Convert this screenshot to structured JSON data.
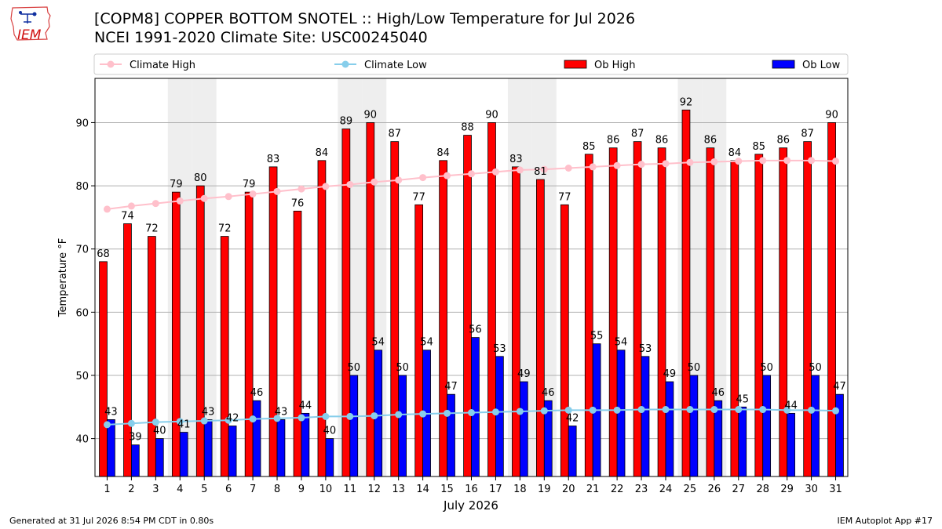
{
  "logo": {
    "text": "IEM",
    "icon": "iowa-state-outline-icon"
  },
  "header": {
    "title": "[COPM8] COPPER BOTTOM SNOTEL :: High/Low Temperature for Jul 2026",
    "subtitle": "NCEI 1991-2020 Climate Site: USC00245040"
  },
  "footer": {
    "left": "Generated at 31 Jul 2026 8:54 PM CDT in 0.80s",
    "right": "IEM Autoplot App #17"
  },
  "colors": {
    "climate_high": "#ffc0cb",
    "climate_low": "#87ceeb",
    "ob_high": "#ff0000",
    "ob_low": "#0000ff",
    "weekend_shade": "#eeeeee",
    "grid": "#b0b0b0"
  },
  "chart_data": {
    "type": "bar",
    "xlabel": "July 2026",
    "ylabel": "Temperature °F",
    "ylim": [
      34,
      97
    ],
    "yticks": [
      40,
      50,
      60,
      70,
      80,
      90
    ],
    "grid": "horizontal",
    "legend_position": "top",
    "categories": [
      "1",
      "2",
      "3",
      "4",
      "5",
      "6",
      "7",
      "8",
      "9",
      "10",
      "11",
      "12",
      "13",
      "14",
      "15",
      "16",
      "17",
      "18",
      "19",
      "20",
      "21",
      "22",
      "23",
      "24",
      "25",
      "26",
      "27",
      "28",
      "29",
      "30",
      "31"
    ],
    "shaded_categories": [
      "4",
      "5",
      "11",
      "12",
      "18",
      "19",
      "25",
      "26"
    ],
    "series": [
      {
        "name": "Climate High",
        "kind": "line",
        "values": [
          76.3,
          76.8,
          77.2,
          77.6,
          78.0,
          78.3,
          78.7,
          79.1,
          79.5,
          79.9,
          80.2,
          80.6,
          80.9,
          81.3,
          81.6,
          81.9,
          82.2,
          82.5,
          82.6,
          82.8,
          83.0,
          83.2,
          83.4,
          83.5,
          83.7,
          83.8,
          83.9,
          84.0,
          84.0,
          84.0,
          83.9
        ]
      },
      {
        "name": "Climate Low",
        "kind": "line",
        "values": [
          42.2,
          42.4,
          42.6,
          42.7,
          42.8,
          42.9,
          43.1,
          43.2,
          43.3,
          43.5,
          43.5,
          43.6,
          43.8,
          43.9,
          44.0,
          44.1,
          44.2,
          44.3,
          44.4,
          44.5,
          44.5,
          44.5,
          44.6,
          44.6,
          44.6,
          44.6,
          44.6,
          44.6,
          44.5,
          44.5,
          44.4
        ]
      },
      {
        "name": "Ob High",
        "kind": "bar",
        "values": [
          68,
          74,
          72,
          79,
          80,
          72,
          79,
          83,
          76,
          84,
          89,
          90,
          87,
          77,
          84,
          88,
          90,
          83,
          81,
          77,
          85,
          86,
          87,
          86,
          92,
          86,
          84,
          85,
          86,
          87,
          90
        ]
      },
      {
        "name": "Ob Low",
        "kind": "bar",
        "values": [
          43,
          39,
          40,
          41,
          43,
          42,
          46,
          43,
          44,
          40,
          50,
          54,
          50,
          54,
          47,
          56,
          53,
          49,
          46,
          42,
          55,
          54,
          53,
          49,
          50,
          46,
          45,
          50,
          44,
          50,
          47
        ]
      }
    ]
  }
}
